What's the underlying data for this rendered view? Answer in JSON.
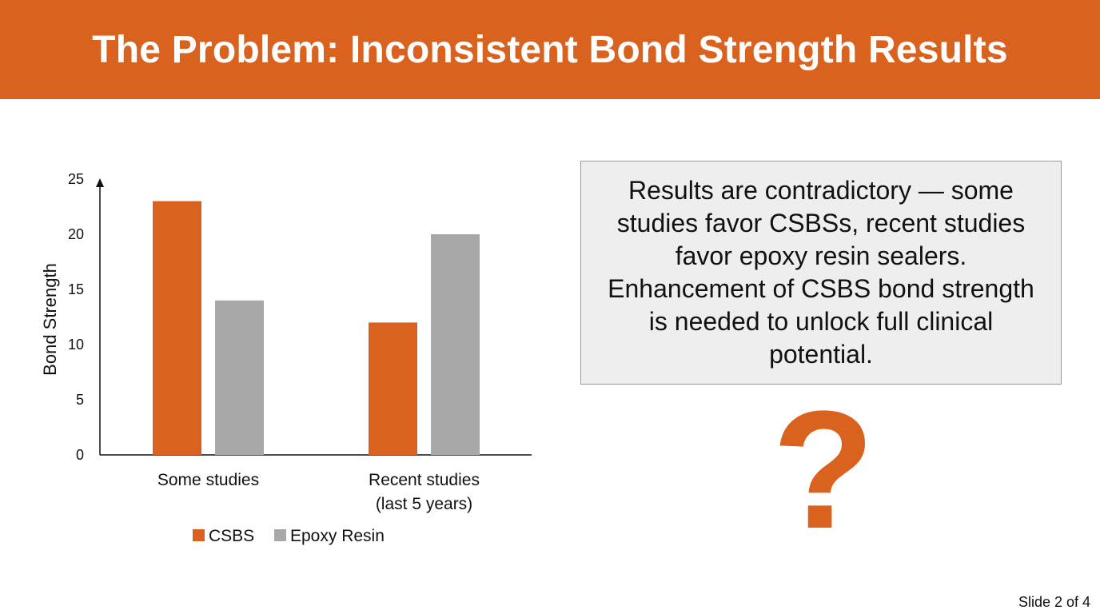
{
  "header": {
    "title": "The Problem: Inconsistent Bond Strength Results"
  },
  "colors": {
    "accent": "#d9631e",
    "epoxy": "#a8a8a8",
    "callout_bg": "#eeeeee"
  },
  "chart_data": {
    "type": "bar",
    "title": "",
    "xlabel": "",
    "ylabel": "Bond Strength",
    "categories": [
      "Some studies",
      "Recent studies\n(last 5 years)"
    ],
    "series": [
      {
        "name": "CSBS",
        "values": [
          23,
          12
        ],
        "color": "#d9631e"
      },
      {
        "name": "Epoxy Resin",
        "values": [
          14,
          20
        ],
        "color": "#a8a8a8"
      }
    ],
    "ylim": [
      0,
      25
    ],
    "yticks": [
      0,
      5,
      10,
      15,
      20,
      25
    ],
    "grid": false,
    "legend_position": "bottom"
  },
  "callout": {
    "text": "Results are contradictory — some studies favor CSBSs, recent studies favor epoxy resin sealers. Enhancement of CSBS bond strength is needed to unlock full clinical potential."
  },
  "question_mark": "?",
  "footer": {
    "slide_number": "Slide 2 of 4"
  }
}
